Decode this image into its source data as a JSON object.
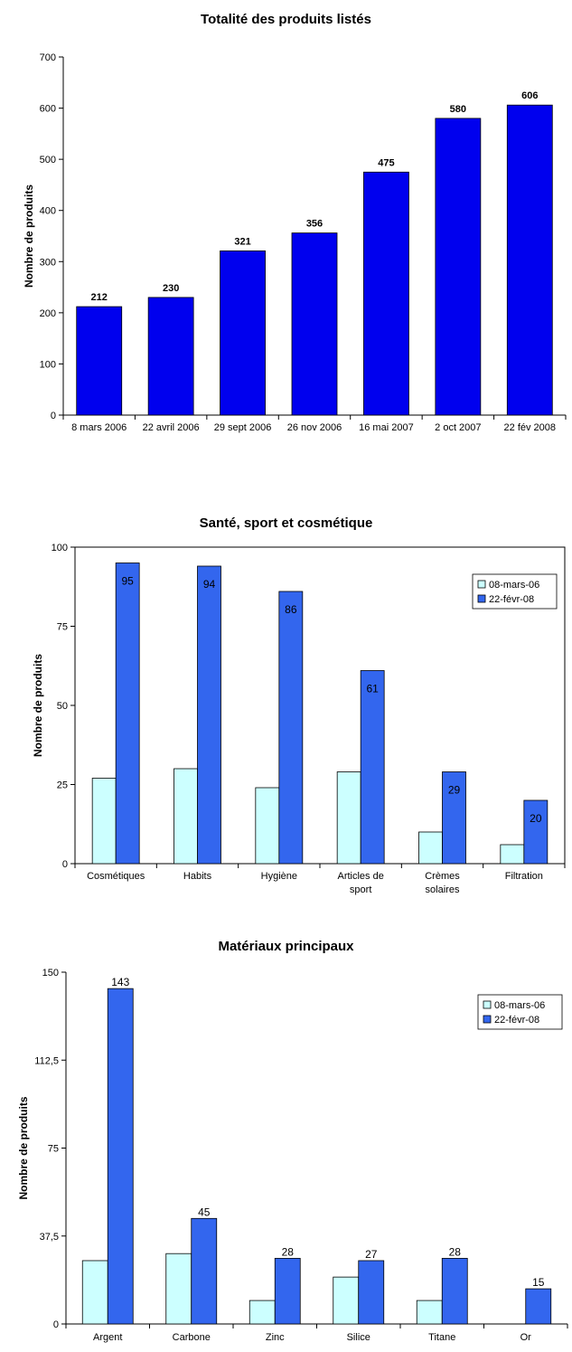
{
  "chart_data": [
    {
      "type": "bar",
      "title": "Totalité des produits listés",
      "ylabel": "Nombre de produits",
      "xlabel": "",
      "ylim": [
        0,
        700
      ],
      "yticks": [
        "0",
        "100",
        "200",
        "300",
        "400",
        "500",
        "600",
        "700"
      ],
      "ytick_values": [
        0,
        100,
        200,
        300,
        400,
        500,
        600,
        700
      ],
      "categories": [
        "8 mars 2006",
        "22 avril 2006",
        "29 sept 2006",
        "26 nov 2006",
        "16 mai 2007",
        "2 oct 2007",
        "22 fév 2008"
      ],
      "values": [
        212,
        230,
        321,
        356,
        475,
        580,
        606
      ],
      "data_labels": [
        "212",
        "230",
        "321",
        "356",
        "475",
        "580",
        "606"
      ],
      "grid": false,
      "colors": {
        "bar": "#0000ee"
      }
    },
    {
      "type": "bar",
      "title": "Santé, sport et cosmétique",
      "ylabel": "Nombre de produits",
      "xlabel": "",
      "ylim": [
        0,
        100
      ],
      "yticks": [
        "0",
        "25",
        "50",
        "75",
        "100"
      ],
      "ytick_values": [
        0,
        25,
        50,
        75,
        100
      ],
      "categories": [
        [
          "Cosmétiques"
        ],
        [
          "Habits"
        ],
        [
          "Hygiène"
        ],
        [
          "Articles de",
          "sport"
        ],
        [
          "Crèmes",
          "solaires"
        ],
        [
          "Filtration"
        ]
      ],
      "series": [
        {
          "name": "08-mars-06",
          "values": [
            27,
            30,
            24,
            29,
            10,
            6
          ],
          "color": "#ccffff"
        },
        {
          "name": "22-févr-08",
          "values": [
            95,
            94,
            86,
            61,
            29,
            20
          ],
          "color": "#3366ee"
        }
      ],
      "data_labels": [
        "95",
        "94",
        "86",
        "61",
        "29",
        "20"
      ],
      "legend": "right",
      "grid": false
    },
    {
      "type": "bar",
      "title": "Matériaux principaux",
      "ylabel": "Nombre de produits",
      "xlabel": "",
      "ylim": [
        0,
        150
      ],
      "yticks": [
        "0",
        "37,5",
        "75",
        "112,5",
        "150"
      ],
      "ytick_values": [
        0,
        37.5,
        75,
        112.5,
        150
      ],
      "categories": [
        [
          "Argent"
        ],
        [
          "Carbone"
        ],
        [
          "Zinc"
        ],
        [
          "Silice"
        ],
        [
          "Titane"
        ],
        [
          "Or"
        ]
      ],
      "series": [
        {
          "name": "08-mars-06",
          "values": [
            27,
            30,
            10,
            20,
            10,
            0
          ],
          "color": "#ccffff"
        },
        {
          "name": "22-févr-08",
          "values": [
            143,
            45,
            28,
            27,
            28,
            15
          ],
          "color": "#3366ee"
        }
      ],
      "data_labels": [
        "143",
        "45",
        "28",
        "27",
        "28",
        "15"
      ],
      "legend": "top-right",
      "grid": false
    }
  ]
}
